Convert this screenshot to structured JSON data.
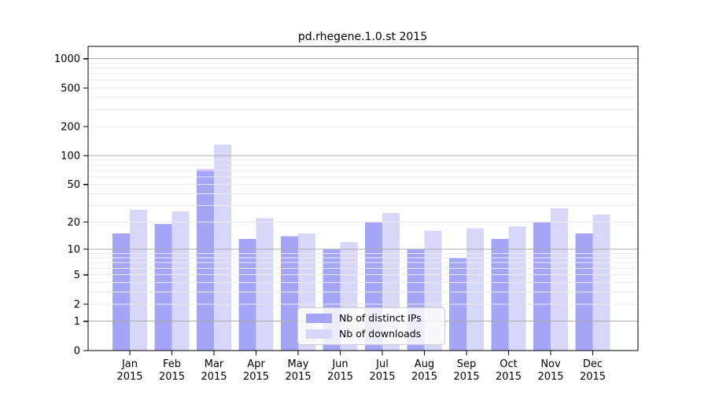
{
  "figure": {
    "title": "pd.rhegene.1.0.st 2015"
  },
  "chart_data": {
    "type": "bar",
    "title": "pd.rhegene.1.0.st 2015",
    "categories": [
      "Jan",
      "Feb",
      "Mar",
      "Apr",
      "May",
      "Jun",
      "Jul",
      "Aug",
      "Sep",
      "Oct",
      "Nov",
      "Dec"
    ],
    "year": "2015",
    "series": [
      {
        "name": "Nb of distinct IPs",
        "color": "#a5a5f7",
        "values": [
          15,
          19,
          72,
          13,
          14,
          10,
          20,
          10,
          8,
          13,
          20,
          15
        ]
      },
      {
        "name": "Nb of downloads",
        "color": "#d7d7f9",
        "values": [
          27,
          26,
          130,
          22,
          15,
          12,
          25,
          16,
          17,
          18,
          28,
          24
        ]
      }
    ],
    "xlabel": "",
    "ylabel": "",
    "yscale": "log1p",
    "ylim": [
      0,
      1340
    ],
    "yticks": [
      0,
      1,
      2,
      5,
      10,
      20,
      50,
      100,
      200,
      500,
      1000
    ],
    "grid": "horizontal major (1,10,100,1000) dark gray + minor (2-9 per decade) light gray, drawn over bars",
    "legend_position": "lower center inside plot",
    "colors": {
      "major_grid": "#ababab",
      "minor_grid": "#ebebeb",
      "frame": "#000000",
      "legend_border": "#cccccc"
    }
  }
}
